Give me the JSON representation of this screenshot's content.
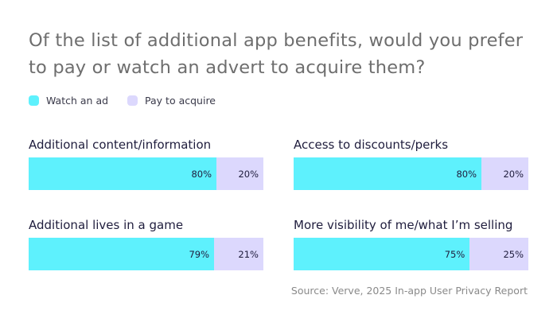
{
  "chart_data": {
    "type": "bar",
    "stacked": true,
    "orientation": "horizontal",
    "title": "Of the list of additional app benefits, would you prefer to pay or watch an advert to acquire them?",
    "legend": [
      {
        "name": "Watch an ad",
        "color": "#5ef1fd"
      },
      {
        "name": "Pay to acquire",
        "color": "#dcd8fd"
      }
    ],
    "legend_placement": "top-left",
    "categories": [
      "Additional content/information",
      "Access to discounts/perks",
      "Additional lives in a game",
      "More visibility of me/what I’m selling"
    ],
    "series": [
      {
        "name": "Watch an ad",
        "values": [
          80,
          80,
          79,
          75
        ],
        "labels": [
          "80%",
          "80%",
          "79%",
          "75%"
        ]
      },
      {
        "name": "Pay to acquire",
        "values": [
          20,
          20,
          21,
          25
        ],
        "labels": [
          "20%",
          "20%",
          "21%",
          "25%"
        ]
      }
    ],
    "xlim": [
      0,
      100
    ],
    "grid": false,
    "source": "Source: Verve, 2025 In-app User Privacy Report"
  }
}
